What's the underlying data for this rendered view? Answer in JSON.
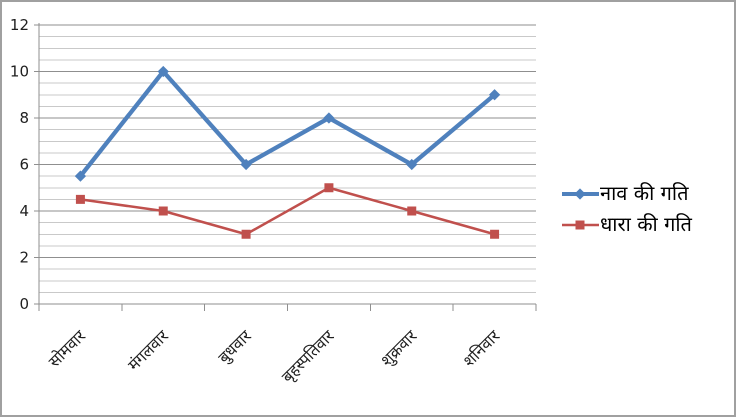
{
  "chart_data": {
    "type": "line",
    "title": "",
    "xlabel": "",
    "ylabel": "",
    "categories": [
      "सोमवार",
      "मंगलवार",
      "बुधवार",
      "बृहस्पतिवार",
      "शुक्रवार",
      "शनिवार"
    ],
    "series": [
      {
        "name": "नाव की गति",
        "values": [
          5.5,
          10,
          6,
          8,
          6,
          9
        ],
        "color": "#4F81BD",
        "marker": "diamond"
      },
      {
        "name": "धारा की गति",
        "values": [
          4.5,
          4,
          3,
          5,
          4,
          3
        ],
        "color": "#C0504D",
        "marker": "square"
      }
    ],
    "ylim": [
      0,
      12
    ],
    "y_major_step": 2,
    "y_minor_step": 0.5,
    "y_tick_labels": [
      "0",
      "2",
      "4",
      "6",
      "8",
      "10",
      "12"
    ],
    "x_tick_rotation_deg": -45,
    "grid": "horizontal major+minor",
    "legend_position": "right"
  },
  "colors": {
    "series_boat": "#4F81BD",
    "series_current": "#C0504D",
    "major_gridline": "#8F8F8F",
    "minor_gridline": "#C9C9C9",
    "axis_line": "#8F8F8F",
    "label_text": "#1F1F1F",
    "frame_border": "#A0A0A0",
    "background": "#FFFFFF"
  }
}
